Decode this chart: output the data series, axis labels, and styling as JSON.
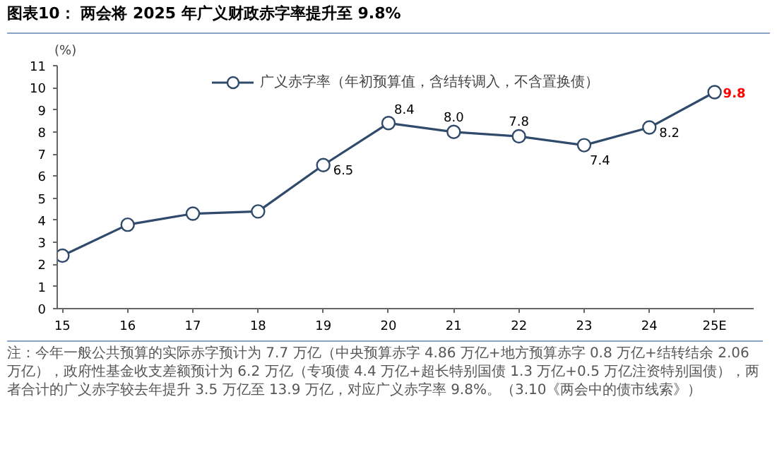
{
  "chart_data": {
    "type": "line",
    "title": "图表10：  两会将 2025 年广义财政赤字率提升至 9.8%",
    "ylabel": "(%)",
    "categories": [
      "15",
      "16",
      "17",
      "18",
      "19",
      "20",
      "21",
      "22",
      "23",
      "24",
      "25E"
    ],
    "series": [
      {
        "name": "广义赤字率（年初预算值，含结转调入，不含置换债）",
        "color": "#2f4a6b",
        "values": [
          2.4,
          3.8,
          4.3,
          4.4,
          6.5,
          8.4,
          8.0,
          7.8,
          7.4,
          8.2,
          9.8
        ],
        "value_labels": [
          null,
          null,
          null,
          null,
          "6.5",
          "8.4",
          "8.0",
          "7.8",
          "7.4",
          "8.2",
          "9.8"
        ]
      }
    ],
    "ylim": [
      0,
      11
    ],
    "yticks": [
      0,
      1,
      2,
      3,
      4,
      5,
      6,
      7,
      8,
      9,
      10,
      11
    ],
    "grid": false,
    "legend": "top",
    "marker": "circle",
    "line_style": "solid",
    "annotations": [
      "注：今年一般公共预算的实际赤字预计为 7.7 万亿（中央预算赤字 4.86 万亿+地方预算赤字 0.8 万亿+结转结余 2.06 万亿），政府性基金收支差额预计为 6.2 万亿（专项债 4.4 万亿+超长特别国债 1.3 万亿+0.5 万亿注资特别国债），两者合计的广义赤字较去年提升 3.5 万亿至 13.9 万亿，对应广义赤字率 9.8%。（3.10《两会中的债市线索》）"
    ]
  }
}
